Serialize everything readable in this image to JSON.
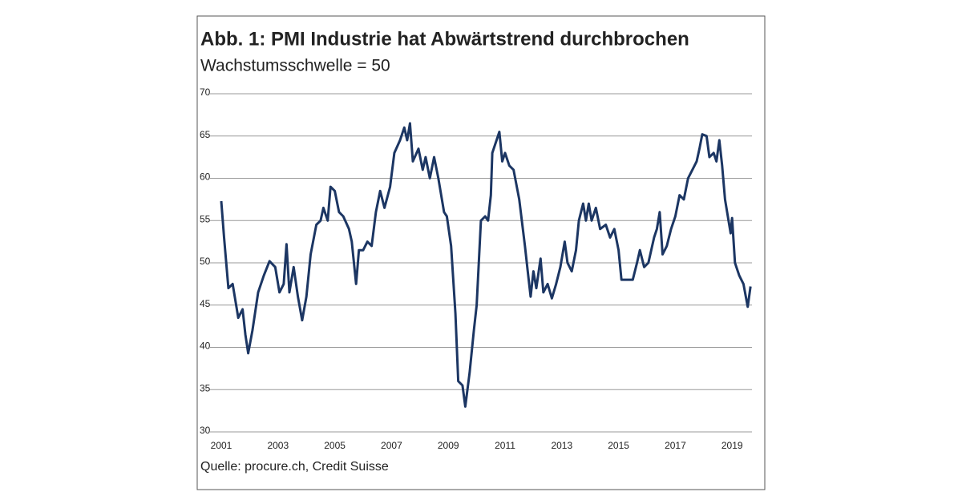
{
  "chart_data": {
    "type": "line",
    "title": "Abb. 1: PMI Industrie hat Abwärtstrend durchbrochen",
    "subtitle": "Wachstumsschwelle = 50",
    "source": "Quelle: procure.ch, Credit Suisse",
    "color": "#1c3663",
    "x": [
      2001.0,
      2001.1,
      2001.25,
      2001.4,
      2001.6,
      2001.75,
      2001.85,
      2001.95,
      2002.1,
      2002.3,
      2002.5,
      2002.7,
      2002.9,
      2003.05,
      2003.2,
      2003.3,
      2003.4,
      2003.55,
      2003.7,
      2003.85,
      2004.0,
      2004.15,
      2004.35,
      2004.5,
      2004.6,
      2004.75,
      2004.85,
      2005.0,
      2005.15,
      2005.3,
      2005.5,
      2005.6,
      2005.75,
      2005.85,
      2006.0,
      2006.15,
      2006.3,
      2006.45,
      2006.6,
      2006.75,
      2006.95,
      2007.1,
      2007.3,
      2007.45,
      2007.55,
      2007.65,
      2007.75,
      2007.95,
      2008.1,
      2008.2,
      2008.35,
      2008.5,
      2008.65,
      2008.85,
      2008.95,
      2009.1,
      2009.25,
      2009.35,
      2009.5,
      2009.6,
      2009.75,
      2009.9,
      2010.0,
      2010.15,
      2010.3,
      2010.4,
      2010.5,
      2010.55,
      2010.7,
      2010.8,
      2010.9,
      2011.0,
      2011.15,
      2011.3,
      2011.5,
      2011.7,
      2011.8,
      2011.9,
      2012.0,
      2012.1,
      2012.25,
      2012.35,
      2012.5,
      2012.65,
      2012.8,
      2012.95,
      2013.1,
      2013.2,
      2013.35,
      2013.5,
      2013.6,
      2013.75,
      2013.85,
      2013.95,
      2014.05,
      2014.2,
      2014.35,
      2014.55,
      2014.7,
      2014.85,
      2015.0,
      2015.1,
      2015.3,
      2015.5,
      2015.65,
      2015.75,
      2015.9,
      2016.05,
      2016.25,
      2016.35,
      2016.45,
      2016.55,
      2016.7,
      2016.85,
      2017.0,
      2017.15,
      2017.3,
      2017.45,
      2017.6,
      2017.75,
      2017.85,
      2017.95,
      2018.1,
      2018.2,
      2018.35,
      2018.45,
      2018.55,
      2018.65,
      2018.75,
      2018.85,
      2018.95,
      2019.0,
      2019.1,
      2019.25,
      2019.4,
      2019.55,
      2019.65
    ],
    "values": [
      57.3,
      53,
      47,
      47.5,
      43.5,
      44.5,
      41.5,
      39.3,
      42,
      46.5,
      48.5,
      50.2,
      49.5,
      46.5,
      47.5,
      52.2,
      46.5,
      49.5,
      46,
      43.2,
      46,
      51,
      54.5,
      55,
      56.5,
      55,
      59,
      58.5,
      56,
      55.5,
      54,
      52.5,
      47.5,
      51.5,
      51.5,
      52.5,
      52,
      56,
      58.5,
      56.5,
      59,
      63,
      64.5,
      66,
      64.5,
      66.5,
      62,
      63.5,
      61,
      62.5,
      60,
      62.5,
      60,
      56,
      55.5,
      52,
      44,
      36,
      35.5,
      33,
      37,
      42,
      45,
      55,
      55.5,
      55,
      58,
      63,
      64.5,
      65.5,
      62,
      63,
      61.5,
      61,
      57.5,
      52,
      49,
      46,
      49,
      47,
      50.5,
      46.5,
      47.5,
      45.8,
      47.5,
      49.5,
      52.5,
      50,
      49,
      51.5,
      55,
      57,
      55,
      57,
      55,
      56.5,
      54,
      54.5,
      53,
      54,
      51.5,
      48,
      48,
      48,
      50,
      51.5,
      49.5,
      50,
      53,
      54,
      56,
      51,
      52,
      54,
      55.5,
      58,
      57.5,
      60,
      61,
      62,
      63.5,
      65.2,
      65,
      62.5,
      63,
      62,
      64.5,
      61.5,
      57.5,
      55.5,
      53.5,
      55.3,
      50,
      48.5,
      47.5,
      44.8,
      47.2
    ],
    "xlim": [
      2001,
      2019.7
    ],
    "xticks": [
      2001,
      2003,
      2005,
      2007,
      2009,
      2011,
      2013,
      2015,
      2017,
      2019
    ],
    "ylim": [
      30,
      70
    ],
    "yticks": [
      30,
      35,
      40,
      45,
      50,
      55,
      60,
      65,
      70
    ],
    "grid": true
  }
}
